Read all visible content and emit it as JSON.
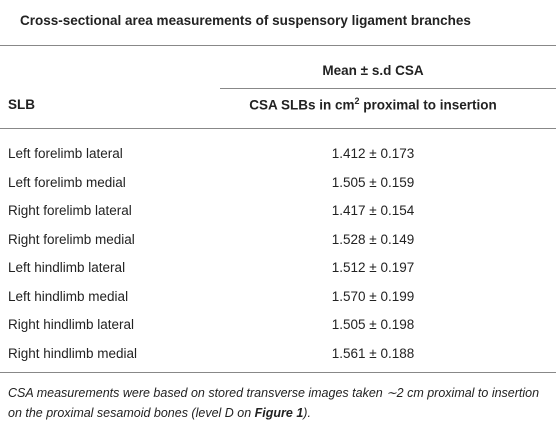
{
  "table": {
    "title": "Cross-sectional area measurements of suspensory ligament branches",
    "group_header": "Mean ± s.d CSA",
    "columns": [
      "SLB",
      {
        "text": "CSA SLBs in cm",
        "sup": "2",
        "rest": " proximal to insertion"
      }
    ],
    "rows": [
      [
        "Left forelimb lateral",
        "1.412 ± 0.173"
      ],
      [
        "Left forelimb medial",
        "1.505 ± 0.159"
      ],
      [
        "Right forelimb lateral",
        "1.417 ± 0.154"
      ],
      [
        "Right forelimb medial",
        "1.528 ± 0.149"
      ],
      [
        "Left hindlimb lateral",
        "1.512 ± 0.197"
      ],
      [
        "Left hindlimb medial",
        "1.570 ± 0.199"
      ],
      [
        "Right hindlimb lateral",
        "1.505 ± 0.198"
      ],
      [
        "Right hindlimb medial",
        "1.561 ± 0.188"
      ]
    ],
    "footnote": {
      "text": "CSA measurements were based on stored transverse images taken ∼2 cm proximal to insertion on the proximal sesamoid bones (level D on ",
      "link": "Figure 1",
      "end": ")."
    }
  }
}
